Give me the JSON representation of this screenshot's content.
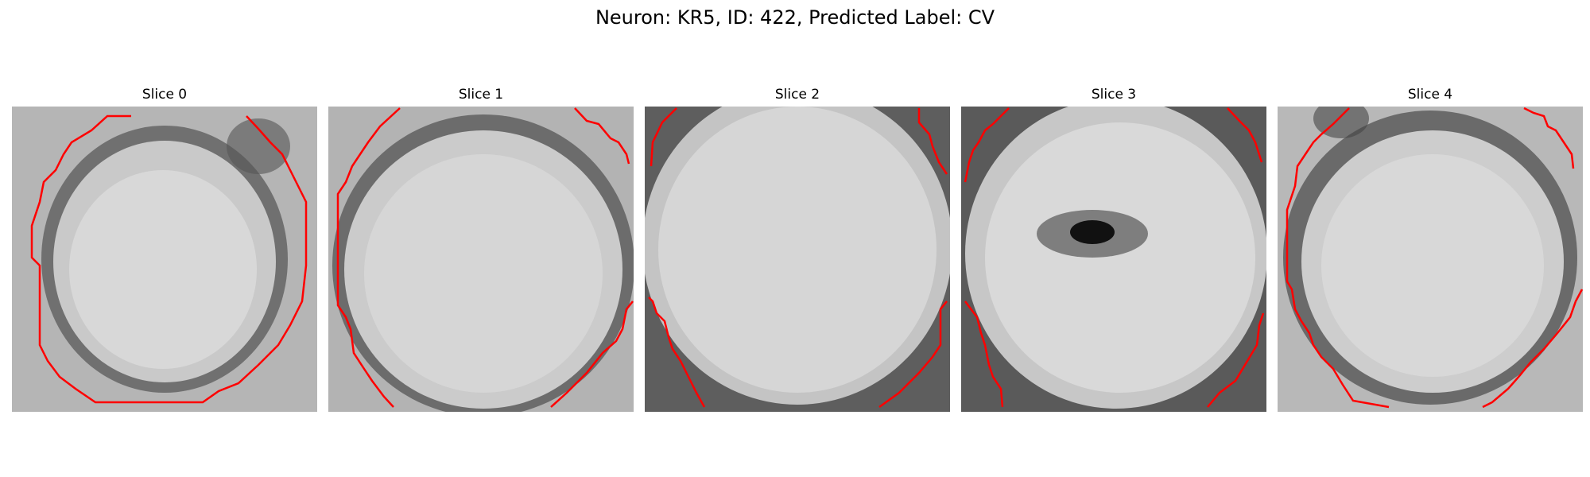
{
  "figure": {
    "title": "Neuron: KR5, ID: 422, Predicted Label: CV",
    "contour_color": "#ff0000",
    "cmap": "gray"
  },
  "panels": [
    {
      "title": "Slice 0"
    },
    {
      "title": "Slice 1"
    },
    {
      "title": "Slice 2"
    },
    {
      "title": "Slice 3"
    },
    {
      "title": "Slice 4"
    }
  ]
}
